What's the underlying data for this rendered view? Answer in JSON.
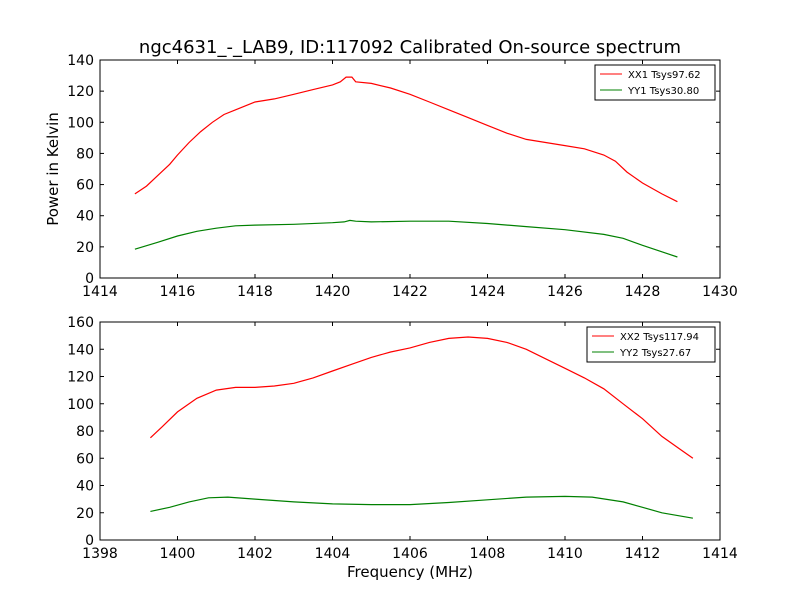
{
  "chart_data": [
    {
      "type": "line",
      "title": "ngc4631_-_LAB9, ID:117092 Calibrated On-source spectrum",
      "xlabel": "",
      "ylabel": "Power in Kelvin",
      "xlim": [
        1414,
        1430
      ],
      "ylim": [
        0,
        140
      ],
      "xticks": [
        1414,
        1416,
        1418,
        1420,
        1422,
        1424,
        1426,
        1428,
        1430
      ],
      "yticks": [
        0,
        20,
        40,
        60,
        80,
        100,
        120,
        140
      ],
      "grid": false,
      "legend_position": "top-right",
      "series": [
        {
          "name": "XX1 Tsys97.62",
          "color": "#ff0000",
          "points": [
            [
              1414.9,
              54
            ],
            [
              1415.2,
              59
            ],
            [
              1415.5,
              66
            ],
            [
              1415.8,
              73
            ],
            [
              1416.0,
              79
            ],
            [
              1416.3,
              87
            ],
            [
              1416.6,
              94
            ],
            [
              1416.9,
              100
            ],
            [
              1417.2,
              105
            ],
            [
              1417.5,
              108
            ],
            [
              1418.0,
              113
            ],
            [
              1418.5,
              115
            ],
            [
              1419.0,
              118
            ],
            [
              1419.5,
              121
            ],
            [
              1420.0,
              124
            ],
            [
              1420.2,
              126
            ],
            [
              1420.35,
              129
            ],
            [
              1420.5,
              129
            ],
            [
              1420.6,
              126
            ],
            [
              1421.0,
              125
            ],
            [
              1421.5,
              122
            ],
            [
              1422.0,
              118
            ],
            [
              1422.5,
              113
            ],
            [
              1423.0,
              108
            ],
            [
              1423.5,
              103
            ],
            [
              1424.0,
              98
            ],
            [
              1424.5,
              93
            ],
            [
              1425.0,
              89
            ],
            [
              1425.5,
              87
            ],
            [
              1426.0,
              85
            ],
            [
              1426.5,
              83
            ],
            [
              1427.0,
              79
            ],
            [
              1427.3,
              75
            ],
            [
              1427.6,
              68
            ],
            [
              1428.0,
              61
            ],
            [
              1428.5,
              54
            ],
            [
              1428.9,
              49
            ]
          ]
        },
        {
          "name": "YY1 Tsys30.80",
          "color": "#008000",
          "points": [
            [
              1414.9,
              18.5
            ],
            [
              1415.5,
              23
            ],
            [
              1416.0,
              27
            ],
            [
              1416.5,
              30
            ],
            [
              1417.0,
              32
            ],
            [
              1417.5,
              33.5
            ],
            [
              1418.0,
              34
            ],
            [
              1419.0,
              34.5
            ],
            [
              1420.0,
              35.5
            ],
            [
              1420.3,
              36
            ],
            [
              1420.45,
              37
            ],
            [
              1420.6,
              36.5
            ],
            [
              1421.0,
              36
            ],
            [
              1422.0,
              36.5
            ],
            [
              1423.0,
              36.5
            ],
            [
              1424.0,
              35
            ],
            [
              1425.0,
              33
            ],
            [
              1426.0,
              31
            ],
            [
              1427.0,
              28
            ],
            [
              1427.5,
              25.5
            ],
            [
              1428.0,
              21
            ],
            [
              1428.9,
              13.5
            ]
          ]
        }
      ]
    },
    {
      "type": "line",
      "title": "",
      "xlabel": "Frequency (MHz)",
      "ylabel": "",
      "xlim": [
        1398,
        1414
      ],
      "ylim": [
        0,
        160
      ],
      "xticks": [
        1398,
        1400,
        1402,
        1404,
        1406,
        1408,
        1410,
        1412,
        1414
      ],
      "yticks": [
        0,
        20,
        40,
        60,
        80,
        100,
        120,
        140,
        160
      ],
      "grid": false,
      "legend_position": "top-right",
      "series": [
        {
          "name": "XX2 Tsys117.94",
          "color": "#ff0000",
          "points": [
            [
              1399.3,
              75
            ],
            [
              1399.6,
              83
            ],
            [
              1400.0,
              94
            ],
            [
              1400.5,
              104
            ],
            [
              1401.0,
              110
            ],
            [
              1401.5,
              112
            ],
            [
              1402.0,
              112
            ],
            [
              1402.5,
              113
            ],
            [
              1403.0,
              115
            ],
            [
              1403.5,
              119
            ],
            [
              1404.0,
              124
            ],
            [
              1404.5,
              129
            ],
            [
              1405.0,
              134
            ],
            [
              1405.5,
              138
            ],
            [
              1406.0,
              141
            ],
            [
              1406.5,
              145
            ],
            [
              1407.0,
              148
            ],
            [
              1407.5,
              149
            ],
            [
              1408.0,
              148
            ],
            [
              1408.5,
              145
            ],
            [
              1409.0,
              140
            ],
            [
              1409.5,
              133
            ],
            [
              1410.0,
              126
            ],
            [
              1410.5,
              119
            ],
            [
              1411.0,
              111
            ],
            [
              1411.5,
              100
            ],
            [
              1412.0,
              89
            ],
            [
              1412.5,
              76
            ],
            [
              1413.0,
              66
            ],
            [
              1413.3,
              60
            ]
          ]
        },
        {
          "name": "YY2 Tsys27.67",
          "color": "#008000",
          "points": [
            [
              1399.3,
              21
            ],
            [
              1399.8,
              24
            ],
            [
              1400.3,
              28
            ],
            [
              1400.8,
              31
            ],
            [
              1401.3,
              31.5
            ],
            [
              1402.0,
              30
            ],
            [
              1403.0,
              28
            ],
            [
              1404.0,
              26.5
            ],
            [
              1405.0,
              26
            ],
            [
              1406.0,
              26
            ],
            [
              1407.0,
              27.5
            ],
            [
              1408.0,
              29.5
            ],
            [
              1409.0,
              31.5
            ],
            [
              1410.0,
              32
            ],
            [
              1410.7,
              31.5
            ],
            [
              1411.5,
              28
            ],
            [
              1412.0,
              24
            ],
            [
              1412.5,
              20
            ],
            [
              1413.3,
              16
            ]
          ]
        }
      ]
    }
  ]
}
